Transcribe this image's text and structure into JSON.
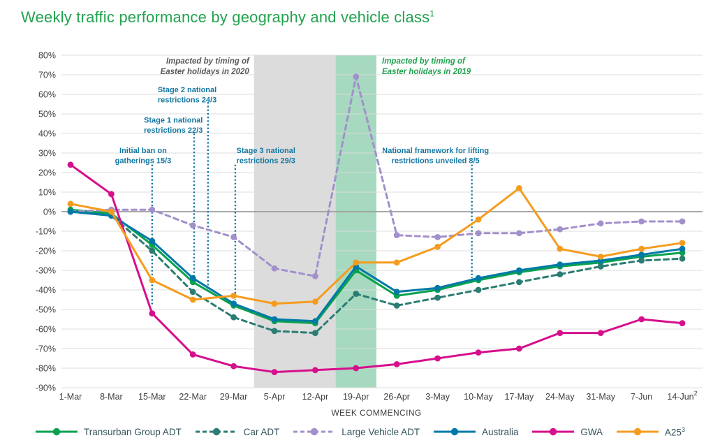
{
  "title": {
    "text": "Weekly traffic performance by geography and vehicle class",
    "superscript": "1"
  },
  "chart_data": {
    "type": "line",
    "title": "Weekly traffic performance by geography and vehicle class",
    "xlabel": "WEEK COMMENCING",
    "ylabel": "",
    "unit": "%",
    "ylim": [
      -90,
      80
    ],
    "grid": true,
    "legend_position": "bottom",
    "y_ticks": [
      80,
      70,
      60,
      50,
      40,
      30,
      20,
      10,
      0,
      -10,
      -20,
      -30,
      -40,
      -50,
      -60,
      -70,
      -80,
      -90
    ],
    "categories": [
      "1-Mar",
      "8-Mar",
      "15-Mar",
      "22-Mar",
      "29-Mar",
      "5-Apr",
      "12-Apr",
      "19-Apr",
      "26-Apr",
      "3-May",
      "10-May",
      "17-May",
      "24-May",
      "31-May",
      "7-Jun",
      "14-Jun"
    ],
    "last_category_superscript": "2",
    "series": [
      {
        "name": "Transurban Group ADT",
        "color": "#0aa14e",
        "dash": "solid",
        "values": [
          1,
          -1,
          -17,
          -36,
          -48,
          -56,
          -57,
          -30,
          -43,
          -40,
          -35,
          -31,
          -28,
          -26,
          -23,
          -21
        ]
      },
      {
        "name": "Car ADT",
        "color": "#2a7d72",
        "dash": "dashed",
        "values": [
          0,
          -2,
          -20,
          -41,
          -54,
          -61,
          -62,
          -42,
          -48,
          -44,
          -40,
          -36,
          -32,
          -28,
          -25,
          -24
        ]
      },
      {
        "name": "Large Vehicle ADT",
        "color": "#a290cb",
        "dash": "dashed",
        "values": [
          0,
          1,
          1,
          -7,
          -13,
          -29,
          -33,
          69,
          -12,
          -13,
          -11,
          -11,
          -9,
          -6,
          -5,
          -5
        ]
      },
      {
        "name": "Australia",
        "color": "#0079a8",
        "dash": "solid",
        "values": [
          0,
          -2,
          -15,
          -34,
          -47,
          -55,
          -56,
          -28,
          -41,
          -39,
          -34,
          -30,
          -27,
          -25,
          -22,
          -19
        ]
      },
      {
        "name": "GWA",
        "color": "#d60f8c",
        "dash": "solid",
        "values": [
          24,
          9,
          -52,
          -73,
          -79,
          -82,
          -81,
          -80,
          -78,
          -75,
          -72,
          -70,
          -62,
          -62,
          -55,
          -57
        ]
      },
      {
        "name": "A25",
        "superscript": "3",
        "color": "#f59c1f",
        "dash": "solid",
        "values": [
          4,
          0,
          -35,
          -45,
          -43,
          -47,
          -46,
          -26,
          -26,
          -18,
          -4,
          12,
          -19,
          -23,
          -19,
          -16
        ]
      }
    ],
    "bands": [
      {
        "id": "easter-2020",
        "label": [
          "Impacted by timing of",
          "Easter holidays in 2020"
        ],
        "from_index": 4.5,
        "to_index": 6.5,
        "color": "#dcdcdc",
        "label_color": "#595959",
        "label_side": "left"
      },
      {
        "id": "easter-2019",
        "label": [
          "Impacted by timing of",
          "Easter holidays in 2019"
        ],
        "from_index": 6.5,
        "to_index": 7.5,
        "color": "#a6d9bf",
        "label_color": "#22a24f",
        "label_side": "right"
      }
    ],
    "event_lines": [
      {
        "id": "initial-ban",
        "lines": [
          "Initial ban on",
          "gatherings 15/3"
        ],
        "line_index": 2.0,
        "text_index": 1.78,
        "text_top": 34,
        "line_top": 24,
        "line_bottom": -48
      },
      {
        "id": "stage-1",
        "lines": [
          "Stage 1 national",
          "restrictions 22/3"
        ],
        "line_index": 3.03,
        "text_index": 2.52,
        "text_top": 49.5,
        "line_top": 40,
        "line_bottom": -34
      },
      {
        "id": "stage-2",
        "lines": [
          "Stage 2 national",
          "restrictions 24/3"
        ],
        "line_index": 3.37,
        "text_index": 2.86,
        "text_top": 65,
        "line_top": 56,
        "line_bottom": -40
      },
      {
        "id": "stage-3",
        "lines": [
          "Stage 3 national",
          "restrictions 29/3"
        ],
        "line_index": 4.04,
        "text_index": 4.79,
        "text_top": 34,
        "line_top": 24,
        "line_bottom": -45
      },
      {
        "id": "framework",
        "lines": [
          "National framework for lifting",
          "restrictions unveiled 8/5"
        ],
        "line_index": 9.84,
        "text_index": 8.95,
        "text_top": 34,
        "line_top": 24,
        "line_bottom": -34
      }
    ],
    "colors": {
      "grid": "#dcdcdc",
      "zero_line": "#9c9c9c",
      "event_line": "#1478a3",
      "axis_text": "#3f3f3f"
    }
  }
}
